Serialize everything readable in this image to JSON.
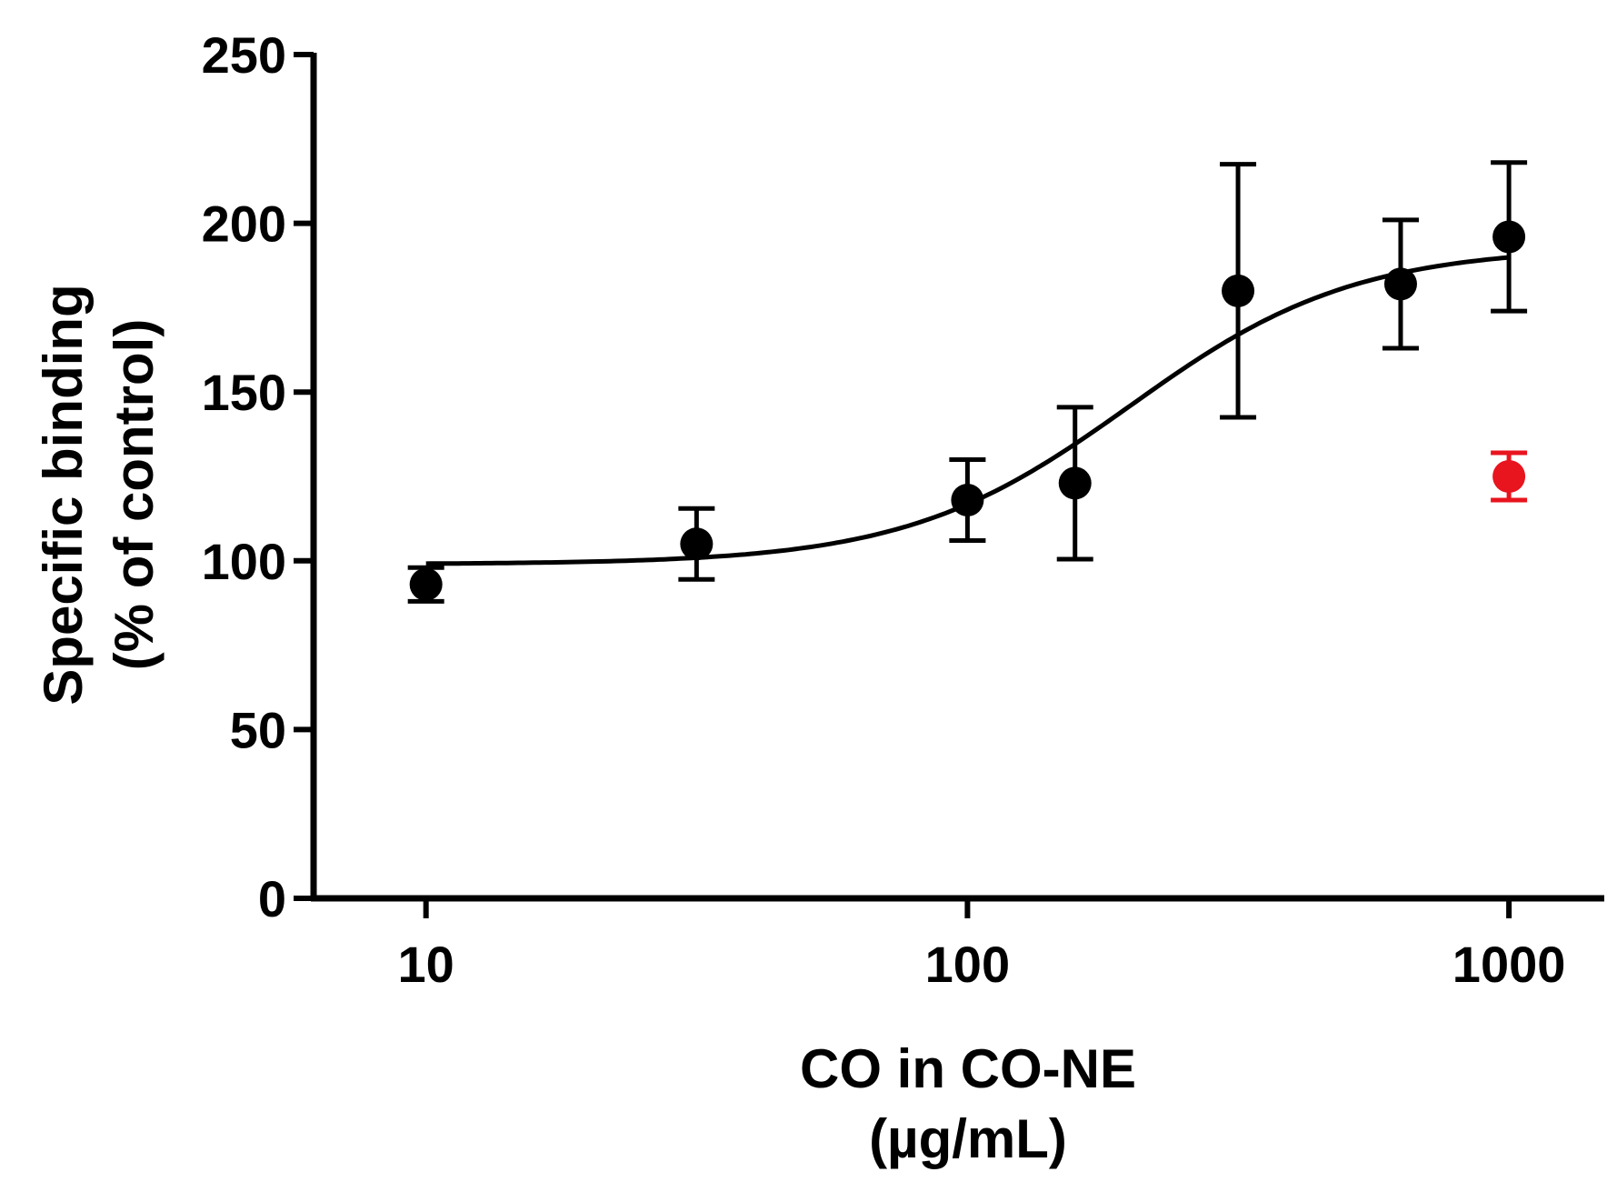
{
  "chart_data": {
    "type": "scatter",
    "x_scale": "log",
    "xlim": [
      6.2,
      1500
    ],
    "ylim": [
      0,
      250
    ],
    "x_ticks": [
      10,
      100,
      1000
    ],
    "y_ticks": [
      0,
      50,
      100,
      150,
      200,
      250
    ],
    "xlabel_lines": [
      "CO in CO-NE",
      "(µg/mL)"
    ],
    "ylabel_lines": [
      "Specific binding",
      "(% of control)"
    ],
    "grid": false,
    "colors": {
      "main": "#000000",
      "reference": "#e8141e"
    },
    "series": [
      {
        "color": "#000000",
        "points": [
          {
            "x": 10,
            "y": 93,
            "err": 5
          },
          {
            "x": 31.6,
            "y": 105,
            "err": 10.5
          },
          {
            "x": 100,
            "y": 118,
            "err": 12
          },
          {
            "x": 158,
            "y": 123,
            "err": 22.5
          },
          {
            "x": 316,
            "y": 180,
            "err": 37.5
          },
          {
            "x": 631,
            "y": 182,
            "err": 19
          },
          {
            "x": 1000,
            "y": 196,
            "err": 22
          }
        ],
        "fit": {
          "bottom": 99,
          "top": 193,
          "ec50": 200,
          "hill": 2.1
        }
      },
      {
        "color": "#e8141e",
        "points": [
          {
            "x": 1000,
            "y": 125,
            "err": 7
          }
        ]
      }
    ]
  }
}
